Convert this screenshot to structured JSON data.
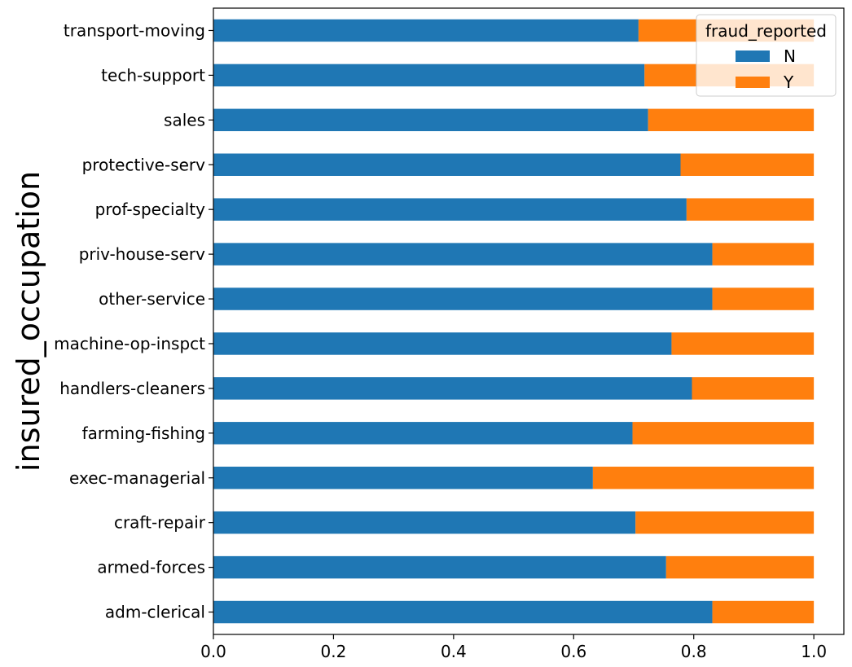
{
  "chart_data": {
    "type": "bar",
    "orientation": "horizontal",
    "stacked": true,
    "title": "",
    "xlabel": "",
    "ylabel": "insured_occupation",
    "xlim": [
      0,
      1.05
    ],
    "xticks": [
      "0.0",
      "0.2",
      "0.4",
      "0.6",
      "0.8",
      "1.0"
    ],
    "xtick_values": [
      0,
      0.2,
      0.4,
      0.6,
      0.8,
      1.0
    ],
    "grid": false,
    "legend": {
      "title": "fraud_reported",
      "position": "top-right"
    },
    "categories": [
      "adm-clerical",
      "armed-forces",
      "craft-repair",
      "exec-managerial",
      "farming-fishing",
      "handlers-cleaners",
      "machine-op-inspct",
      "other-service",
      "priv-house-serv",
      "prof-specialty",
      "protective-serv",
      "sales",
      "tech-support",
      "transport-moving"
    ],
    "series": [
      {
        "name": "N",
        "color": "#1f77b4",
        "values": [
          0.831,
          0.754,
          0.703,
          0.632,
          0.698,
          0.797,
          0.763,
          0.831,
          0.831,
          0.788,
          0.778,
          0.724,
          0.718,
          0.708
        ]
      },
      {
        "name": "Y",
        "color": "#ff7f0e",
        "values": [
          0.169,
          0.246,
          0.297,
          0.368,
          0.302,
          0.203,
          0.237,
          0.169,
          0.169,
          0.212,
          0.222,
          0.276,
          0.282,
          0.292
        ]
      }
    ]
  }
}
